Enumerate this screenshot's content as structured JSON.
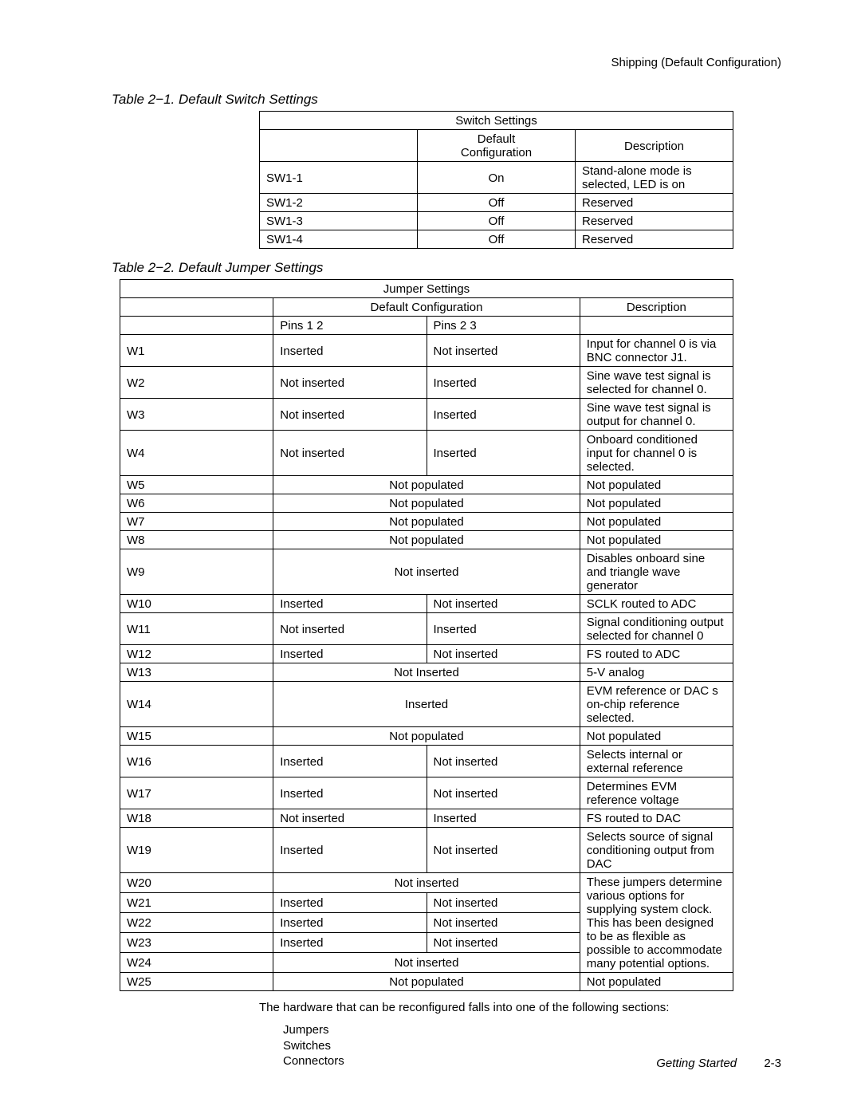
{
  "header": {
    "right": "Shipping (Default Configuration)"
  },
  "table1": {
    "caption": "Table 2−1. Default Switch Settings",
    "group_header": "Switch Settings",
    "col_switch": "",
    "col_default_l1": "Default",
    "col_default_l2": "Configuration",
    "col_desc": "Description",
    "rows": [
      {
        "sw": "SW1-1",
        "def": "On",
        "desc": "Stand-alone mode is selected, LED is on"
      },
      {
        "sw": "SW1-2",
        "def": "Off",
        "desc": "Reserved"
      },
      {
        "sw": "SW1-3",
        "def": "Off",
        "desc": "Reserved"
      },
      {
        "sw": "SW1-4",
        "def": "Off",
        "desc": "Reserved"
      }
    ]
  },
  "table2": {
    "caption": "Table 2−2. Default Jumper Settings",
    "group_header": "Jumper Settings",
    "col_default": "Default Configuration",
    "col_desc": "Description",
    "sub_pins12": "Pins 1  2",
    "sub_pins23": "Pins 2  3",
    "clock_desc": "These jumpers determine various options for supplying system clock. This has been designed to be as flexible as possible to accommodate many potential options.",
    "rows": [
      {
        "j": "W1",
        "p12": "Inserted",
        "p23": "Not inserted",
        "desc": "Input for channel 0 is via BNC connector J1."
      },
      {
        "j": "W2",
        "p12": "Not inserted",
        "p23": "Inserted",
        "desc": "Sine wave test signal is selected for channel 0."
      },
      {
        "j": "W3",
        "p12": "Not inserted",
        "p23": "Inserted",
        "desc": "Sine wave test signal is output for channel 0."
      },
      {
        "j": "W4",
        "p12": "Not inserted",
        "p23": "Inserted",
        "desc": "Onboard conditioned input for channel 0 is selected."
      },
      {
        "j": "W5",
        "merged": "Not populated",
        "desc": "Not populated"
      },
      {
        "j": "W6",
        "merged": "Not populated",
        "desc": "Not populated"
      },
      {
        "j": "W7",
        "merged": "Not populated",
        "desc": "Not populated"
      },
      {
        "j": "W8",
        "merged": "Not populated",
        "desc": "Not populated"
      },
      {
        "j": "W9",
        "merged": "Not inserted",
        "desc": "Disables onboard sine and triangle wave generator"
      },
      {
        "j": "W10",
        "p12": "Inserted",
        "p23": "Not inserted",
        "desc": "SCLK routed to ADC"
      },
      {
        "j": "W11",
        "p12": "Not inserted",
        "p23": "Inserted",
        "desc": "Signal conditioning output selected for channel 0"
      },
      {
        "j": "W12",
        "p12": "Inserted",
        "p23": "Not inserted",
        "desc": "FS routed to ADC"
      },
      {
        "j": "W13",
        "merged": "Not Inserted",
        "desc": "5-V analog"
      },
      {
        "j": "W14",
        "merged": "Inserted",
        "desc": "EVM reference or DAC s on-chip reference selected."
      },
      {
        "j": "W15",
        "merged": "Not populated",
        "desc": "Not populated"
      },
      {
        "j": "W16",
        "p12": "Inserted",
        "p23": "Not inserted",
        "desc": "Selects internal or external reference"
      },
      {
        "j": "W17",
        "p12": "Inserted",
        "p23": "Not inserted",
        "desc": "Determines EVM reference voltage"
      },
      {
        "j": "W18",
        "p12": "Not inserted",
        "p23": "Inserted",
        "desc": "FS routed to DAC"
      },
      {
        "j": "W19",
        "p12": "Inserted",
        "p23": "Not inserted",
        "desc": "Selects source of signal conditioning output from DAC"
      },
      {
        "j": "W20",
        "merged": "Not inserted",
        "clock_row": true
      },
      {
        "j": "W21",
        "p12": "Inserted",
        "p23": "Not inserted",
        "clock_row": true
      },
      {
        "j": "W22",
        "p12": "Inserted",
        "p23": "Not inserted",
        "clock_row": true
      },
      {
        "j": "W23",
        "p12": "Inserted",
        "p23": "Not inserted",
        "clock_row": true
      },
      {
        "j": "W24",
        "merged": "Not inserted",
        "clock_row": true
      },
      {
        "j": "W25",
        "merged": "Not populated",
        "desc": "Not populated"
      }
    ]
  },
  "body": {
    "para": "The hardware that can be reconfigured falls into one of the following sections:",
    "list": [
      "Jumpers",
      "Switches",
      "Connectors"
    ]
  },
  "footer": {
    "section": "Getting Started",
    "pageno": "2-3"
  }
}
